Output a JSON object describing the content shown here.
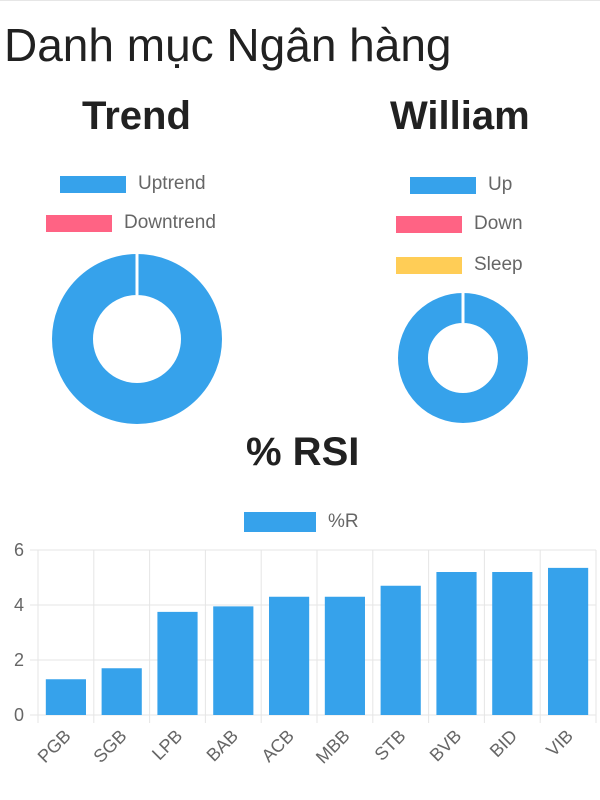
{
  "page": {
    "title": "Danh mục Ngân hàng"
  },
  "colors": {
    "blue": "#36a2eb",
    "pink": "#ff6384",
    "yellow": "#ffcd56",
    "text": "#666666",
    "grid": "#e5e5e5"
  },
  "charts": {
    "trend": {
      "title": "Trend",
      "legend": [
        "Uptrend",
        "Downtrend"
      ]
    },
    "william": {
      "title": "William",
      "legend": [
        "Up",
        "Down",
        "Sleep"
      ]
    },
    "rsi": {
      "title": "% RSI",
      "legend": [
        "%R"
      ]
    }
  },
  "chart_data": [
    {
      "type": "pie",
      "title": "Trend",
      "labels": [
        "Uptrend",
        "Downtrend"
      ],
      "values": [
        1,
        0
      ],
      "colors": [
        "#36a2eb",
        "#ff6384"
      ],
      "doughnut": true,
      "legend_position": "top"
    },
    {
      "type": "pie",
      "title": "William",
      "labels": [
        "Up",
        "Down",
        "Sleep"
      ],
      "values": [
        1,
        0,
        0
      ],
      "colors": [
        "#36a2eb",
        "#ff6384",
        "#ffcd56"
      ],
      "doughnut": true,
      "legend_position": "top"
    },
    {
      "type": "bar",
      "title": "% RSI",
      "categories": [
        "PGB",
        "SGB",
        "LPB",
        "BAB",
        "ACB",
        "MBB",
        "STB",
        "BVB",
        "BID",
        "VIB"
      ],
      "series": [
        {
          "name": "%R",
          "values": [
            1.3,
            1.7,
            3.75,
            3.95,
            4.3,
            4.3,
            4.7,
            5.2,
            5.2,
            5.35
          ]
        }
      ],
      "ylim": [
        0,
        6
      ],
      "yticks": [
        0,
        2,
        4,
        6
      ],
      "grid": true,
      "legend_position": "top",
      "color": "#36a2eb"
    }
  ]
}
